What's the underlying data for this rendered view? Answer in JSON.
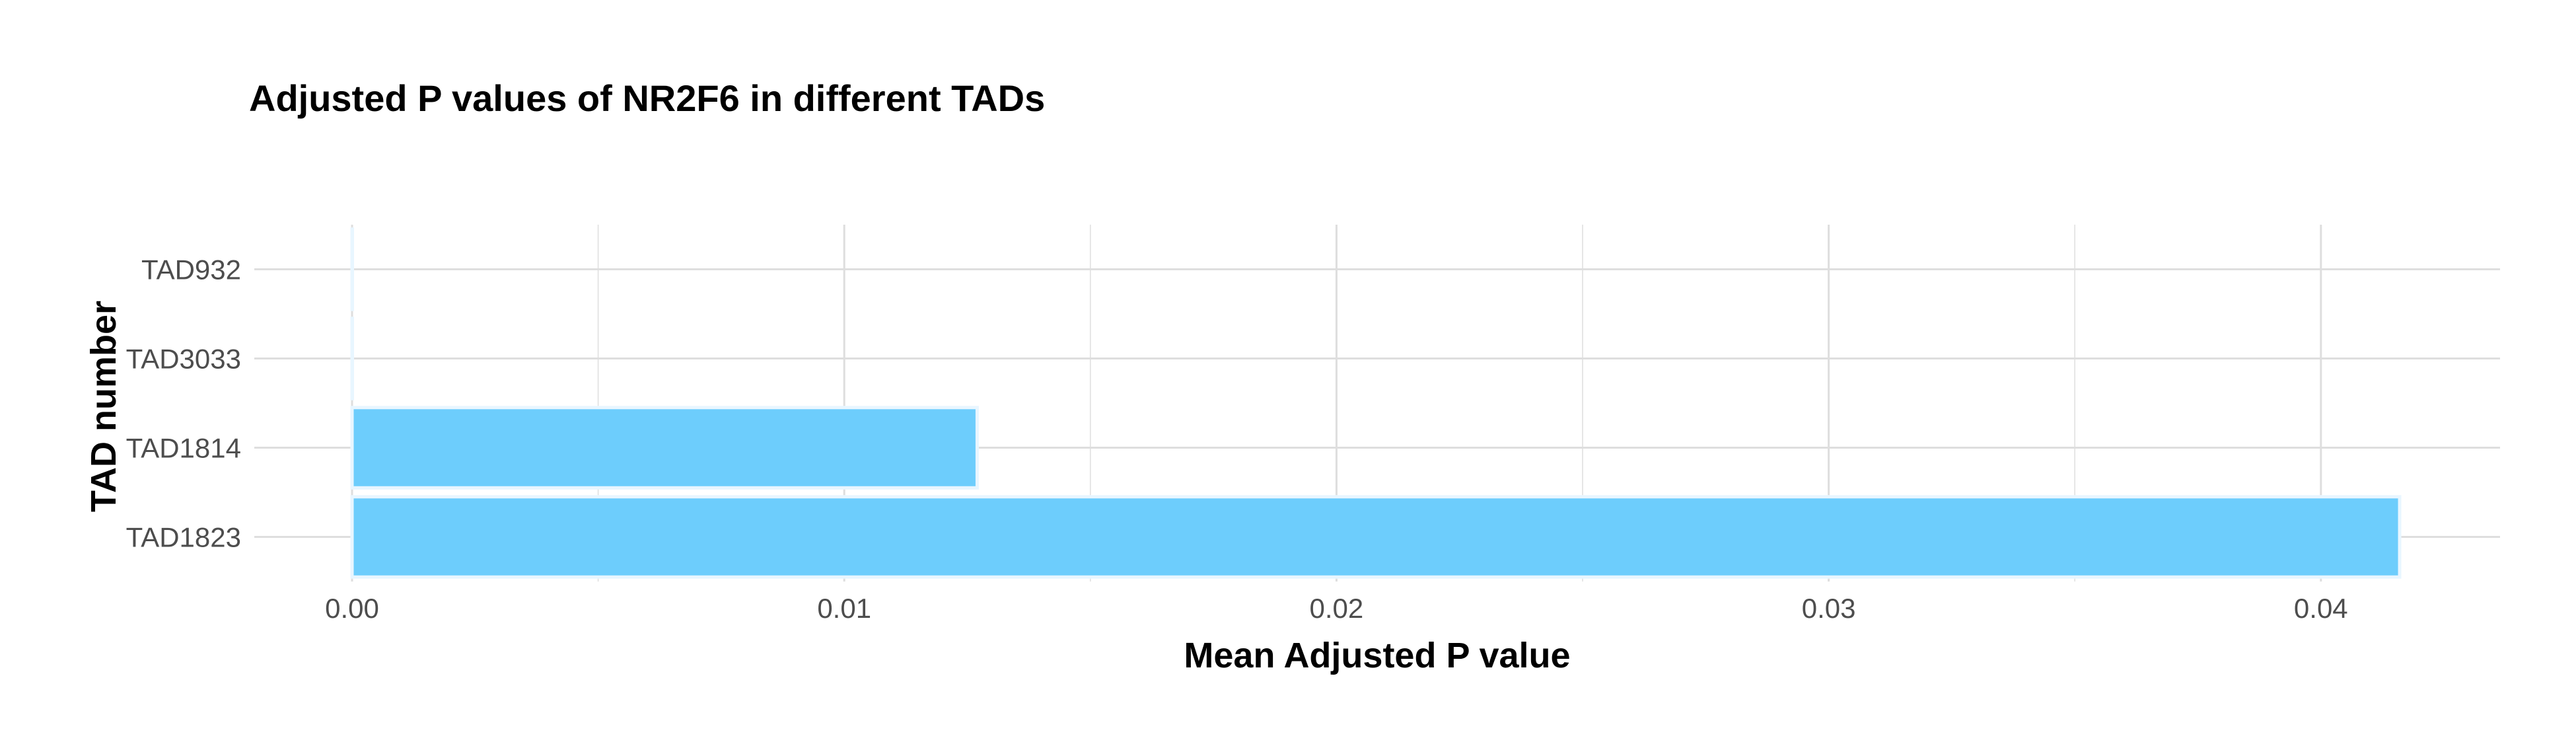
{
  "chart_data": {
    "type": "bar",
    "orientation": "horizontal",
    "title": "Adjusted P values of NR2F6 in different TADs",
    "xlabel": "Mean Adjusted P value",
    "ylabel": "TAD number",
    "categories": [
      "TAD1823",
      "TAD1814",
      "TAD3033",
      "TAD932"
    ],
    "values": [
      0.0416,
      0.0127,
      0.0,
      0.0
    ],
    "xlim": [
      -0.0021,
      0.0437
    ],
    "xticks": [
      0.0,
      0.01,
      0.02,
      0.03,
      0.04
    ],
    "xtick_labels": [
      "0.00",
      "0.01",
      "0.02",
      "0.03",
      "0.04"
    ],
    "grid": true,
    "legend": "none",
    "bar_color": "#6dcdfc",
    "bar_outline_color": "#e8f6ff",
    "grid_color": "#dedede"
  }
}
